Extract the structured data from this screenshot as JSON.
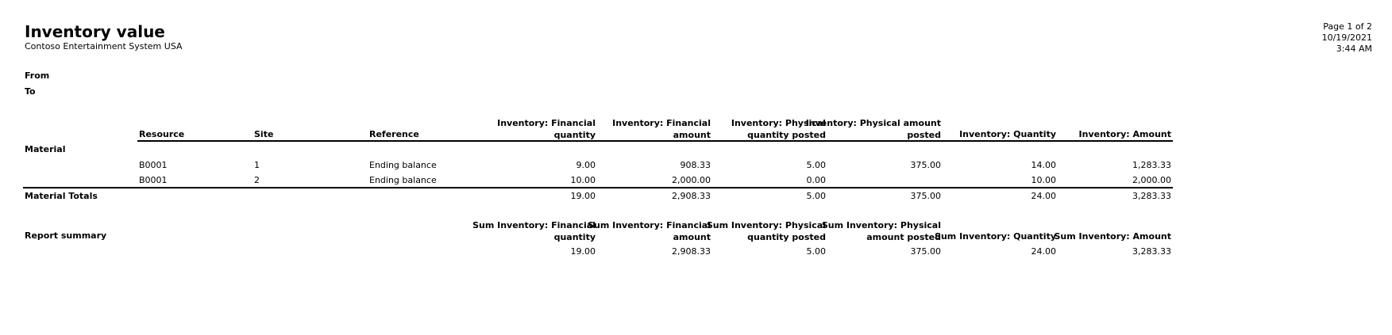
{
  "report": {
    "title": "Inventory value",
    "company": "Contoso Entertainment System USA",
    "page": "Page 1 of 2",
    "date": "10/19/2021",
    "time": "3:44 AM"
  },
  "filters": {
    "from_label": "From",
    "to_label": "To"
  },
  "columns": {
    "resource": "Resource",
    "site": "Site",
    "reference": "Reference",
    "fin_qty": [
      "Inventory: Financial",
      "quantity"
    ],
    "fin_amt": [
      "Inventory: Financial",
      "amount"
    ],
    "phys_qty": [
      "Inventory: Physical",
      "quantity posted"
    ],
    "phys_amt": [
      "Inventory: Physical amount",
      "posted"
    ],
    "qty": "Inventory: Quantity",
    "amt": "Inventory: Amount"
  },
  "group": {
    "label": "Material",
    "rows": [
      {
        "resource": "B0001",
        "site": "1",
        "reference": "Ending balance",
        "fin_qty": "9.00",
        "fin_amt": "908.33",
        "phys_qty": "5.00",
        "phys_amt": "375.00",
        "qty": "14.00",
        "amt": "1,283.33"
      },
      {
        "resource": "B0001",
        "site": "2",
        "reference": "Ending balance",
        "fin_qty": "10.00",
        "fin_amt": "2,000.00",
        "phys_qty": "0.00",
        "phys_amt": "",
        "qty": "10.00",
        "amt": "2,000.00"
      }
    ],
    "totals": {
      "label": "Material Totals",
      "fin_qty": "19.00",
      "fin_amt": "2,908.33",
      "phys_qty": "5.00",
      "phys_amt": "375.00",
      "qty": "24.00",
      "amt": "3,283.33"
    }
  },
  "summary": {
    "label": "Report summary",
    "headers": {
      "fin_qty": [
        "Sum Inventory: Financial",
        "quantity"
      ],
      "fin_amt": [
        "Sum Inventory: Financial",
        "amount"
      ],
      "phys_qty": [
        "Sum Inventory: Physical",
        "quantity posted"
      ],
      "phys_amt": [
        "Sum Inventory: Physical",
        "amount posted"
      ],
      "qty": "Sum Inventory: Quantity",
      "amt": "Sum Inventory: Amount"
    },
    "values": {
      "fin_qty": "19.00",
      "fin_amt": "2,908.33",
      "phys_qty": "5.00",
      "phys_amt": "375.00",
      "qty": "24.00",
      "amt": "3,283.33"
    }
  }
}
